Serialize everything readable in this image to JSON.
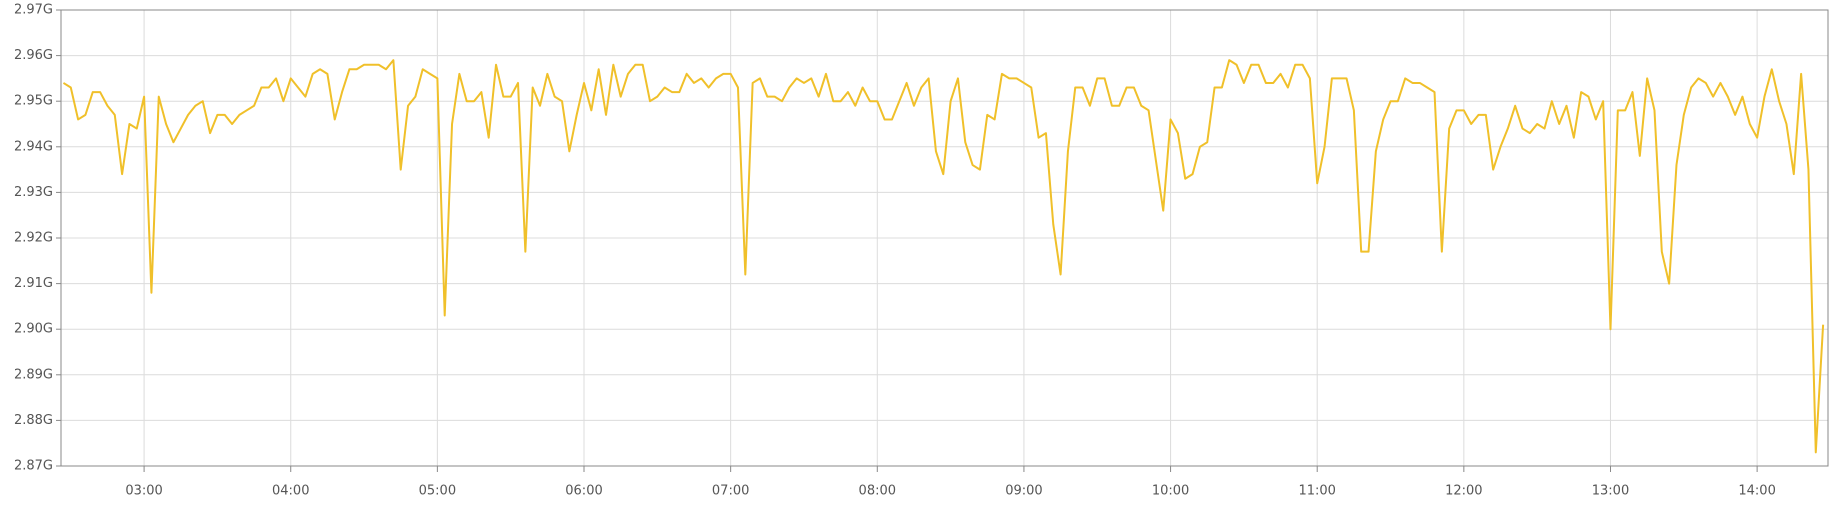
{
  "chart_data": {
    "type": "line",
    "color": "#f0c02a",
    "grid": true,
    "xlim": [
      "02:26",
      "14:29"
    ],
    "xticks": [
      "03:00",
      "04:00",
      "05:00",
      "06:00",
      "07:00",
      "08:00",
      "09:00",
      "10:00",
      "11:00",
      "12:00",
      "13:00",
      "14:00"
    ],
    "ylim": [
      2.87,
      2.97
    ],
    "yticks": [
      {
        "value": 2.87,
        "label": "2.87G"
      },
      {
        "value": 2.88,
        "label": "2.88G"
      },
      {
        "value": 2.89,
        "label": "2.89G"
      },
      {
        "value": 2.9,
        "label": "2.90G"
      },
      {
        "value": 2.91,
        "label": "2.91G"
      },
      {
        "value": 2.92,
        "label": "2.92G"
      },
      {
        "value": 2.93,
        "label": "2.93G"
      },
      {
        "value": 2.94,
        "label": "2.94G"
      },
      {
        "value": 2.95,
        "label": "2.95G"
      },
      {
        "value": 2.96,
        "label": "2.96G"
      },
      {
        "value": 2.97,
        "label": "2.97G"
      }
    ],
    "x": [
      "02:27",
      "02:30",
      "02:33",
      "02:36",
      "02:39",
      "02:42",
      "02:45",
      "02:48",
      "02:51",
      "02:54",
      "02:57",
      "03:00",
      "03:03",
      "03:06",
      "03:09",
      "03:12",
      "03:15",
      "03:18",
      "03:21",
      "03:24",
      "03:27",
      "03:30",
      "03:33",
      "03:36",
      "03:39",
      "03:42",
      "03:45",
      "03:48",
      "03:51",
      "03:54",
      "03:57",
      "04:00",
      "04:03",
      "04:06",
      "04:09",
      "04:12",
      "04:15",
      "04:18",
      "04:21",
      "04:24",
      "04:27",
      "04:30",
      "04:33",
      "04:36",
      "04:39",
      "04:42",
      "04:45",
      "04:48",
      "04:51",
      "04:54",
      "04:57",
      "05:00",
      "05:03",
      "05:06",
      "05:09",
      "05:12",
      "05:15",
      "05:18",
      "05:21",
      "05:24",
      "05:27",
      "05:30",
      "05:33",
      "05:36",
      "05:39",
      "05:42",
      "05:45",
      "05:48",
      "05:51",
      "05:54",
      "05:57",
      "06:00",
      "06:03",
      "06:06",
      "06:09",
      "06:12",
      "06:15",
      "06:18",
      "06:21",
      "06:24",
      "06:27",
      "06:30",
      "06:33",
      "06:36",
      "06:39",
      "06:42",
      "06:45",
      "06:48",
      "06:51",
      "06:54",
      "06:57",
      "07:00",
      "07:03",
      "07:06",
      "07:09",
      "07:12",
      "07:15",
      "07:18",
      "07:21",
      "07:24",
      "07:27",
      "07:30",
      "07:33",
      "07:36",
      "07:39",
      "07:42",
      "07:45",
      "07:48",
      "07:51",
      "07:54",
      "07:57",
      "08:00",
      "08:03",
      "08:06",
      "08:09",
      "08:12",
      "08:15",
      "08:18",
      "08:21",
      "08:24",
      "08:27",
      "08:30",
      "08:33",
      "08:36",
      "08:39",
      "08:42",
      "08:45",
      "08:48",
      "08:51",
      "08:54",
      "08:57",
      "09:00",
      "09:03",
      "09:06",
      "09:09",
      "09:12",
      "09:15",
      "09:18",
      "09:21",
      "09:24",
      "09:27",
      "09:30",
      "09:33",
      "09:36",
      "09:39",
      "09:42",
      "09:45",
      "09:48",
      "09:51",
      "09:54",
      "09:57",
      "10:00",
      "10:03",
      "10:06",
      "10:09",
      "10:12",
      "10:15",
      "10:18",
      "10:21",
      "10:24",
      "10:27",
      "10:30",
      "10:33",
      "10:36",
      "10:39",
      "10:42",
      "10:45",
      "10:48",
      "10:51",
      "10:54",
      "10:57",
      "11:00",
      "11:03",
      "11:06",
      "11:09",
      "11:12",
      "11:15",
      "11:18",
      "11:21",
      "11:24",
      "11:27",
      "11:30",
      "11:33",
      "11:36",
      "11:39",
      "11:42",
      "11:45",
      "11:48",
      "11:51",
      "11:54",
      "11:57",
      "12:00",
      "12:03",
      "12:06",
      "12:09",
      "12:12",
      "12:15",
      "12:18",
      "12:21",
      "12:24",
      "12:27",
      "12:30",
      "12:33",
      "12:36",
      "12:39",
      "12:42",
      "12:45",
      "12:48",
      "12:51",
      "12:54",
      "12:57",
      "13:00",
      "13:03",
      "13:06",
      "13:09",
      "13:12",
      "13:15",
      "13:18",
      "13:21",
      "13:24",
      "13:27",
      "13:30",
      "13:33",
      "13:36",
      "13:39",
      "13:42",
      "13:45",
      "13:48",
      "13:51",
      "13:54",
      "13:57",
      "14:00",
      "14:03",
      "14:06",
      "14:09",
      "14:12",
      "14:15",
      "14:18",
      "14:21",
      "14:24",
      "14:27"
    ],
    "values": [
      2.954,
      2.953,
      2.946,
      2.947,
      2.952,
      2.952,
      2.949,
      2.947,
      2.934,
      2.945,
      2.944,
      2.951,
      2.908,
      2.951,
      2.945,
      2.941,
      2.944,
      2.947,
      2.949,
      2.95,
      2.943,
      2.947,
      2.947,
      2.945,
      2.947,
      2.948,
      2.949,
      2.953,
      2.953,
      2.955,
      2.95,
      2.955,
      2.953,
      2.951,
      2.956,
      2.957,
      2.956,
      2.946,
      2.952,
      2.957,
      2.957,
      2.958,
      2.958,
      2.958,
      2.957,
      2.959,
      2.935,
      2.949,
      2.951,
      2.957,
      2.956,
      2.955,
      2.903,
      2.945,
      2.956,
      2.95,
      2.95,
      2.952,
      2.942,
      2.958,
      2.951,
      2.951,
      2.954,
      2.917,
      2.953,
      2.949,
      2.956,
      2.951,
      2.95,
      2.939,
      2.947,
      2.954,
      2.948,
      2.957,
      2.947,
      2.958,
      2.951,
      2.956,
      2.958,
      2.958,
      2.95,
      2.951,
      2.953,
      2.952,
      2.952,
      2.956,
      2.954,
      2.955,
      2.953,
      2.955,
      2.956,
      2.956,
      2.953,
      2.912,
      2.954,
      2.955,
      2.951,
      2.951,
      2.95,
      2.953,
      2.955,
      2.954,
      2.955,
      2.951,
      2.956,
      2.95,
      2.95,
      2.952,
      2.949,
      2.953,
      2.95,
      2.95,
      2.946,
      2.946,
      2.95,
      2.954,
      2.949,
      2.953,
      2.955,
      2.939,
      2.934,
      2.95,
      2.955,
      2.941,
      2.936,
      2.935,
      2.947,
      2.946,
      2.956,
      2.955,
      2.955,
      2.954,
      2.953,
      2.942,
      2.943,
      2.923,
      2.912,
      2.939,
      2.953,
      2.953,
      2.949,
      2.955,
      2.955,
      2.949,
      2.949,
      2.953,
      2.953,
      2.949,
      2.948,
      2.937,
      2.926,
      2.946,
      2.943,
      2.933,
      2.934,
      2.94,
      2.941,
      2.953,
      2.953,
      2.959,
      2.958,
      2.954,
      2.958,
      2.958,
      2.954,
      2.954,
      2.956,
      2.953,
      2.958,
      2.958,
      2.955,
      2.932,
      2.94,
      2.955,
      2.955,
      2.955,
      2.948,
      2.917,
      2.917,
      2.939,
      2.946,
      2.95,
      2.95,
      2.955,
      2.954,
      2.954,
      2.953,
      2.952,
      2.917,
      2.944,
      2.948,
      2.948,
      2.945,
      2.947,
      2.947,
      2.935,
      2.94,
      2.944,
      2.949,
      2.944,
      2.943,
      2.945,
      2.944,
      2.95,
      2.945,
      2.949,
      2.942,
      2.952,
      2.951,
      2.946,
      2.95,
      2.9,
      2.948,
      2.948,
      2.952,
      2.938,
      2.955,
      2.948,
      2.917,
      2.91,
      2.936,
      2.947,
      2.953,
      2.955,
      2.954,
      2.951,
      2.954,
      2.951,
      2.947,
      2.951,
      2.945,
      2.942,
      2.951,
      2.957,
      2.95,
      2.945,
      2.934,
      2.956,
      2.935,
      2.873,
      2.901
    ]
  }
}
